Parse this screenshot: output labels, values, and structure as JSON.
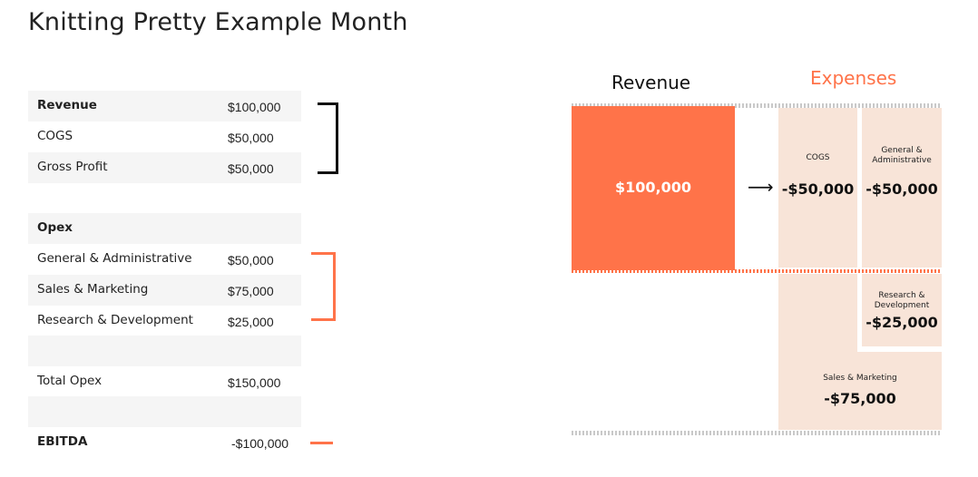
{
  "title": "Knitting Pretty Example Month",
  "table": {
    "revenue": {
      "label": "Revenue",
      "value": "$100,000"
    },
    "cogs": {
      "label": "COGS",
      "value": "$50,000"
    },
    "gross_profit": {
      "label": "Gross Profit",
      "value": "$50,000"
    },
    "opex": {
      "label": "Opex"
    },
    "ga": {
      "label": "General & Administrative",
      "value": "$50,000"
    },
    "sm": {
      "label": "Sales & Marketing",
      "value": "$75,000"
    },
    "rd": {
      "label": "Research & Development",
      "value": "$25,000"
    },
    "total_opex": {
      "label": "Total Opex",
      "value": "$150,000"
    },
    "ebitda": {
      "label": "EBITDA",
      "value": "-$100,000"
    }
  },
  "diagram": {
    "revenue_header": "Revenue",
    "expenses_header": "Expenses",
    "revenue_value": "$100,000",
    "arrow": "⟶",
    "cogs": {
      "label": "COGS",
      "value": "-$50,000"
    },
    "ga": {
      "label": "General & Administrative",
      "value": "-$50,000"
    },
    "rd": {
      "label": "Research & Development",
      "value": "-$25,000"
    },
    "sm": {
      "label": "Sales & Marketing",
      "value": "-$75,000"
    },
    "colors": {
      "revenue": "#ff7349",
      "expense_header": "#ff7349",
      "expense_block": "#f8e4d8"
    }
  }
}
